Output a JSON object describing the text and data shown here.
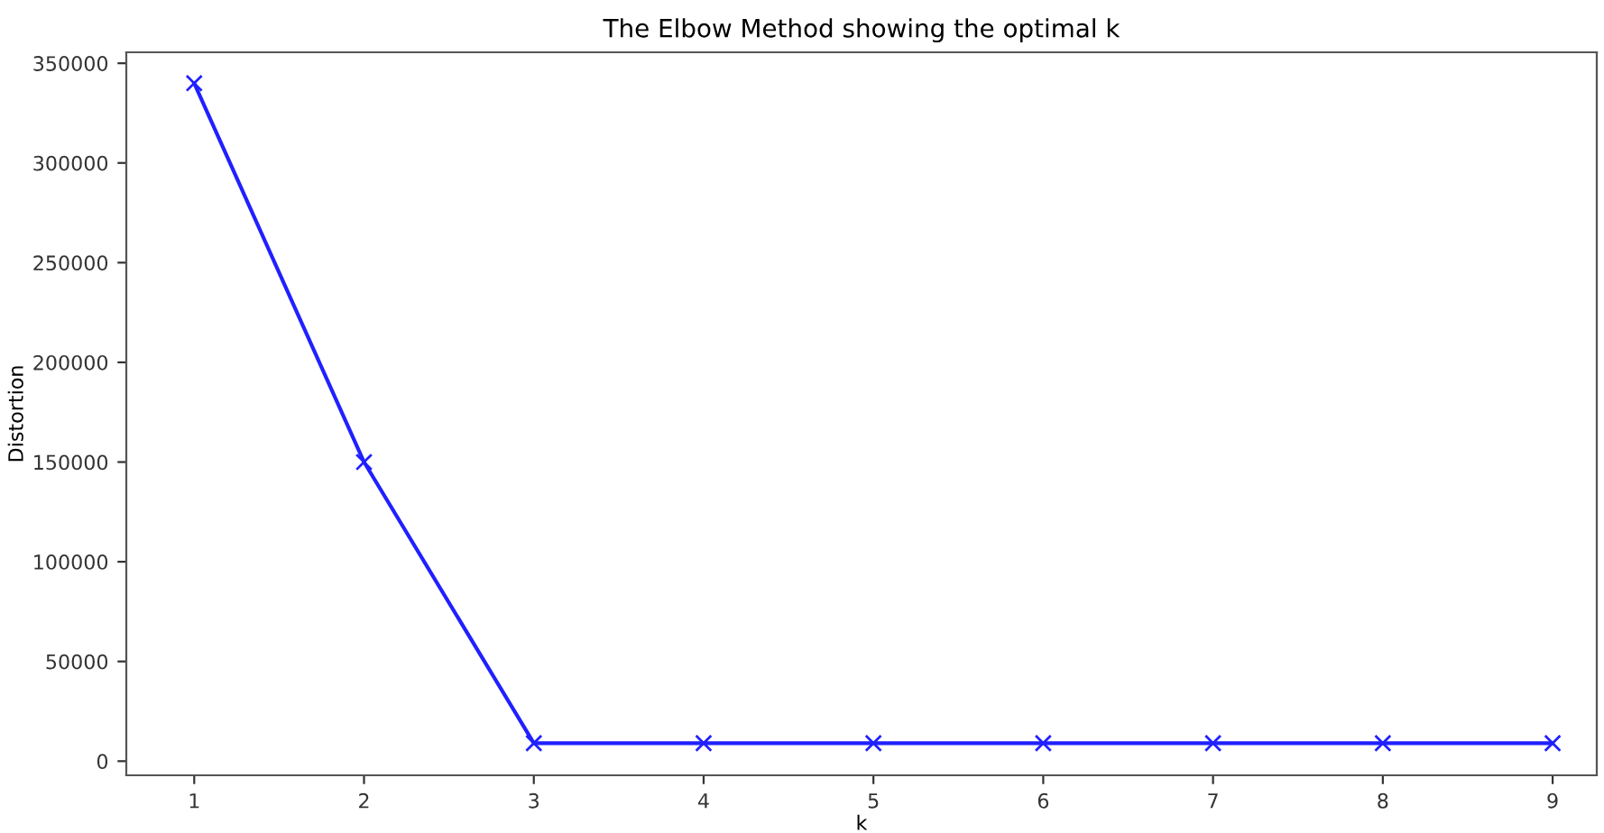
{
  "chart_data": {
    "type": "line",
    "title": "The Elbow Method showing the optimal k",
    "xlabel": "k",
    "ylabel": "Distortion",
    "x": [
      1,
      2,
      3,
      4,
      5,
      6,
      7,
      8,
      9
    ],
    "series": [
      {
        "color": "#2020ff",
        "values": [
          340000,
          150000,
          9000,
          9000,
          9000,
          9000,
          9000,
          9000,
          9000
        ]
      }
    ],
    "xlim": [
      0.6,
      9.26
    ],
    "xticks": [
      1,
      2,
      3,
      4,
      5,
      6,
      7,
      8,
      9
    ],
    "ylim": [
      -7100,
      355500
    ],
    "yticks": [
      0,
      50000,
      100000,
      150000,
      200000,
      250000,
      300000,
      350000
    ],
    "marker": "cross",
    "line_style": "solid",
    "grid": false,
    "legend": false
  }
}
